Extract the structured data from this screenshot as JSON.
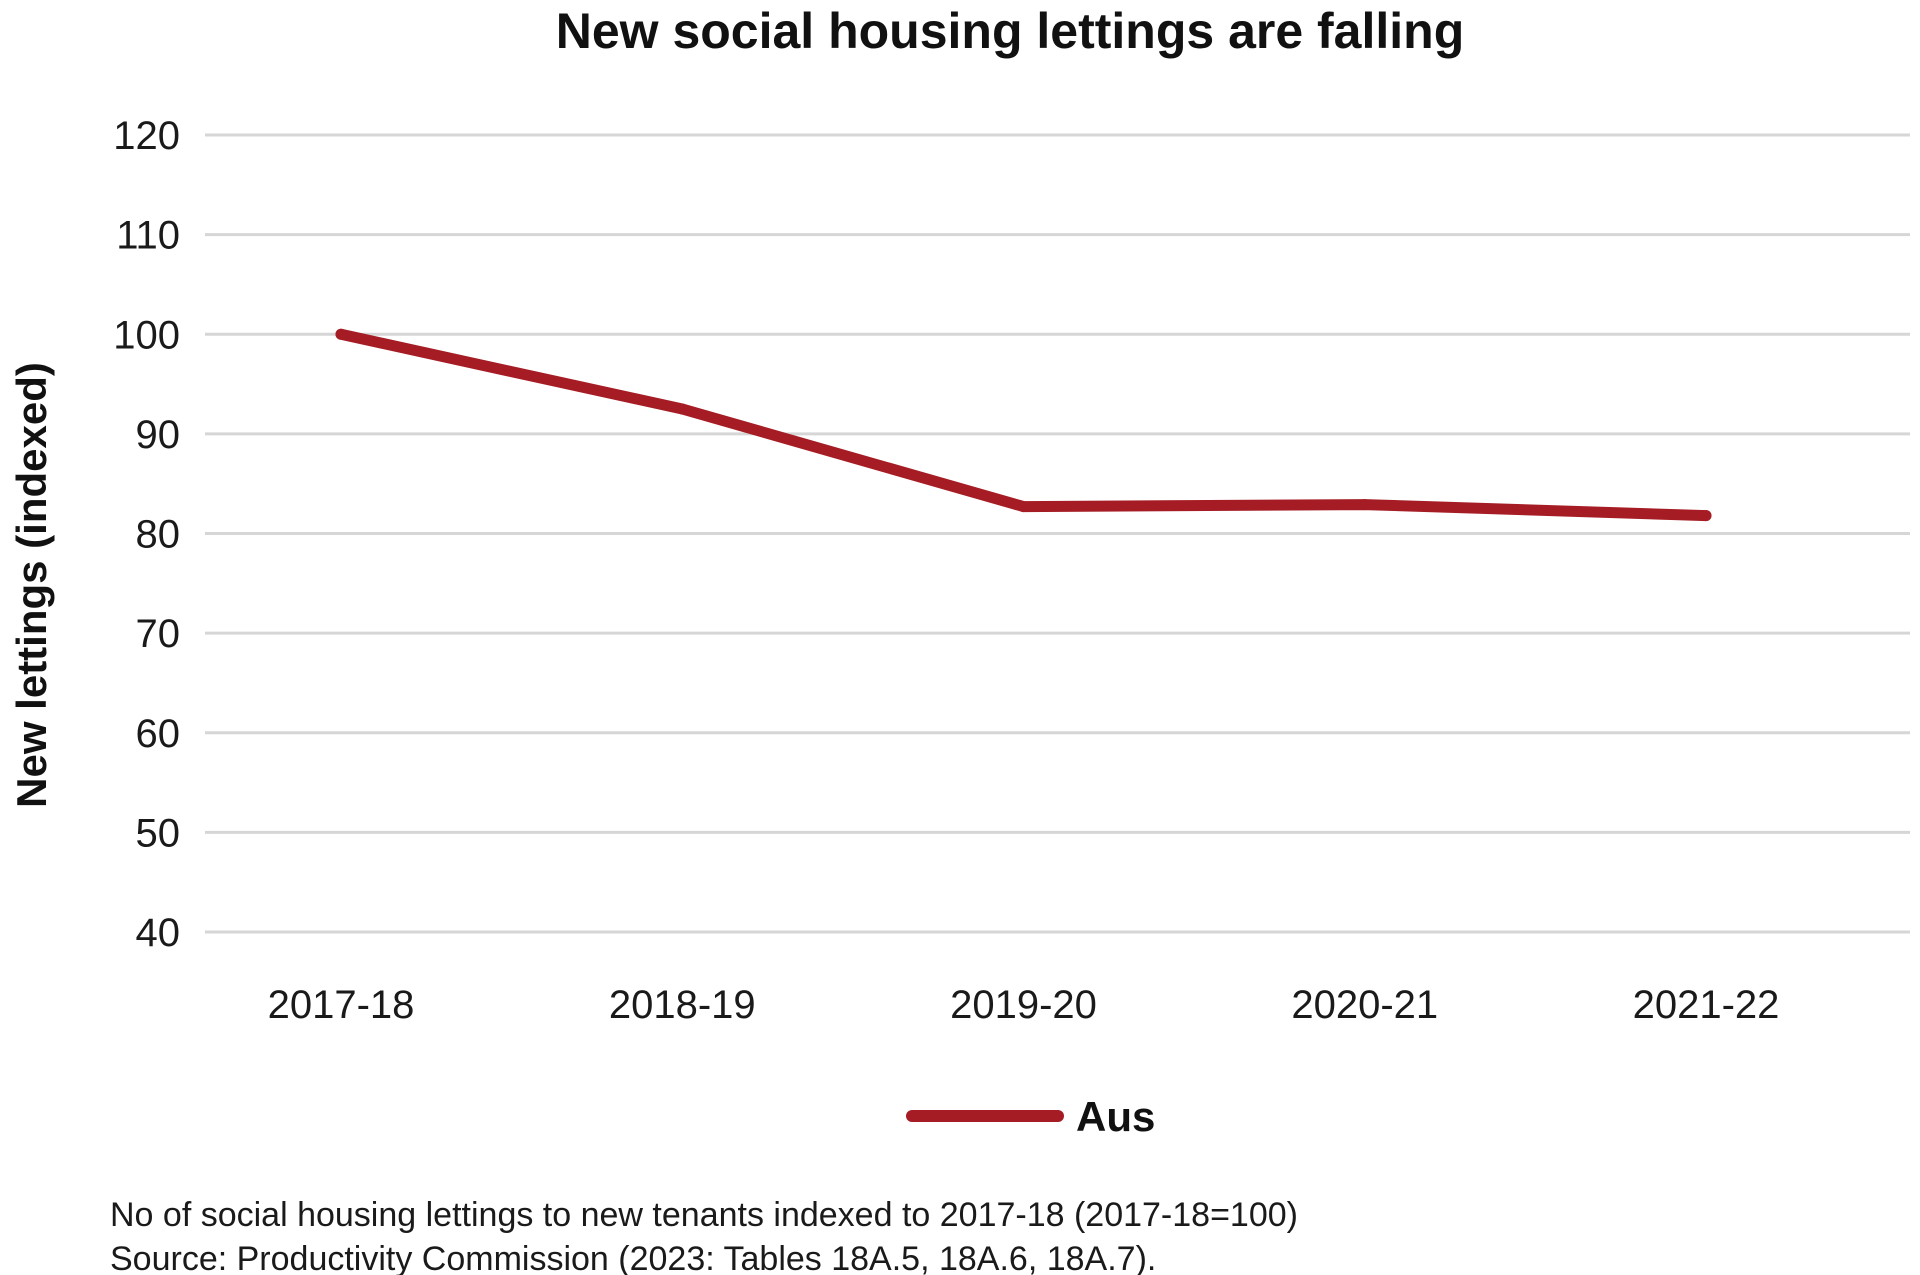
{
  "chart_data": {
    "type": "line",
    "title": "New social housing lettings are falling",
    "xlabel": "",
    "ylabel": "New lettings (indexed)",
    "categories": [
      "2017-18",
      "2018-19",
      "2019-20",
      "2020-21",
      "2021-22"
    ],
    "series": [
      {
        "name": "Aus",
        "values": [
          100,
          92.5,
          82.7,
          82.9,
          81.8
        ],
        "color": "#a51c24"
      }
    ],
    "ylim": [
      40,
      120
    ],
    "yticks": [
      120,
      110,
      100,
      90,
      80,
      70,
      60,
      50,
      40
    ],
    "grid": true,
    "legend_position": "bottom-center"
  },
  "footnotes": {
    "note": "No of social housing lettings to new tenants indexed to 2017-18 (2017-18=100)",
    "source": "Source: Productivity Commission (2023: Tables 18A.5, 18A.6, 18A.7)."
  }
}
